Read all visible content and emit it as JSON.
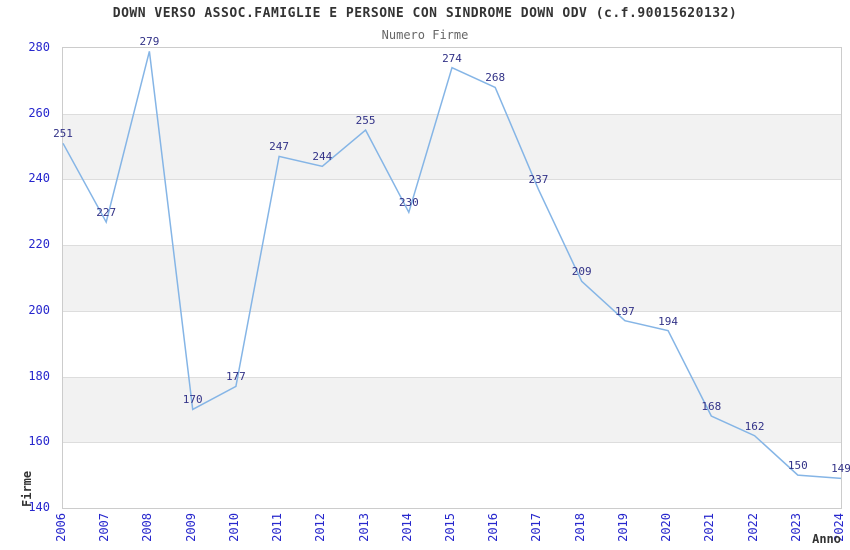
{
  "chart_data": {
    "type": "line",
    "title": "DOWN VERSO ASSOC.FAMIGLIE E PERSONE CON SINDROME DOWN ODV (c.f.90015620132)",
    "subtitle": "Numero Firme",
    "xlabel": "Anno",
    "ylabel": "Firme",
    "categories": [
      "2006",
      "2007",
      "2008",
      "2009",
      "2010",
      "2011",
      "2012",
      "2013",
      "2014",
      "2015",
      "2016",
      "2017",
      "2018",
      "2019",
      "2020",
      "2021",
      "2022",
      "2023",
      "2024"
    ],
    "values": [
      251,
      227,
      279,
      170,
      177,
      247,
      244,
      255,
      230,
      274,
      268,
      237,
      209,
      197,
      194,
      168,
      162,
      150,
      149
    ],
    "ylim": [
      140,
      280
    ],
    "ytick_step": 20,
    "ytick_labels": [
      "280",
      "260",
      "240",
      "220",
      "200",
      "180",
      "160",
      "140"
    ],
    "grid": true,
    "alternating_bands": true,
    "legend": "none",
    "data_labels_visible": true,
    "colors": {
      "line": "#85b5e6",
      "data_label": "#333388",
      "tick_label": "#2727cd",
      "band": "#f2f2f2",
      "gridline": "#dddddd",
      "plot_border": "#cccccc",
      "title": "#333333",
      "subtitle": "#666666",
      "axis_title": "#333333",
      "background": "#ffffff"
    }
  }
}
